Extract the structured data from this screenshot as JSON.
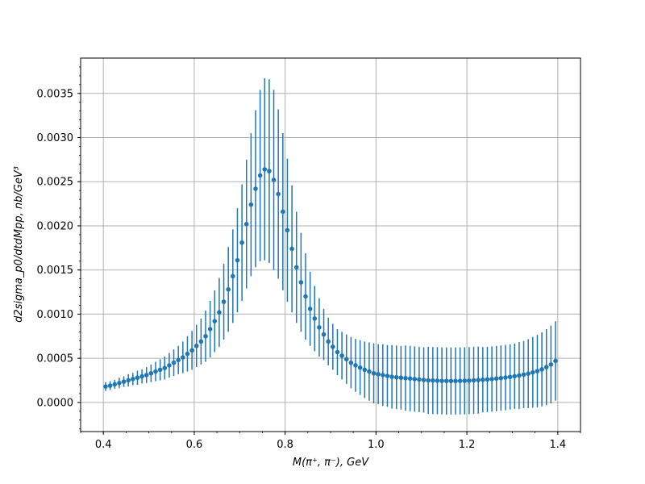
{
  "chart_data": {
    "type": "scatter",
    "title": "",
    "xlabel": "M(π⁺, π⁻), GeV",
    "ylabel": "d2sigma_p0/dtdMpp, nb/GeV³",
    "xlim": [
      0.35,
      1.45
    ],
    "ylim": [
      -0.00033,
      0.0039
    ],
    "xticks": [
      "0.4",
      "0.6",
      "0.8",
      "1.0",
      "1.2",
      "1.4"
    ],
    "yticks": [
      "0.0000",
      "0.0005",
      "0.0010",
      "0.0015",
      "0.0020",
      "0.0025",
      "0.0030",
      "0.0035"
    ],
    "grid": true,
    "marker_color": "#1f77b4",
    "series": [
      {
        "x": [
          0.405,
          0.415,
          0.425,
          0.435,
          0.445,
          0.455,
          0.465,
          0.475,
          0.485,
          0.495,
          0.505,
          0.515,
          0.525,
          0.535,
          0.545,
          0.555,
          0.565,
          0.575,
          0.585,
          0.595,
          0.605,
          0.615,
          0.625,
          0.635,
          0.645,
          0.655,
          0.665,
          0.675,
          0.685,
          0.695,
          0.705,
          0.715,
          0.725,
          0.735,
          0.745,
          0.755,
          0.765,
          0.775,
          0.785,
          0.795,
          0.805,
          0.815,
          0.825,
          0.835,
          0.845,
          0.855,
          0.865,
          0.875,
          0.885,
          0.895,
          0.905,
          0.915,
          0.925,
          0.935,
          0.945,
          0.955,
          0.965,
          0.975,
          0.985,
          0.995,
          1.005,
          1.015,
          1.025,
          1.035,
          1.045,
          1.055,
          1.065,
          1.075,
          1.085,
          1.095,
          1.105,
          1.115,
          1.125,
          1.135,
          1.145,
          1.155,
          1.165,
          1.175,
          1.185,
          1.195,
          1.205,
          1.215,
          1.225,
          1.235,
          1.245,
          1.255,
          1.265,
          1.275,
          1.285,
          1.295,
          1.305,
          1.315,
          1.325,
          1.335,
          1.345,
          1.355,
          1.365,
          1.375,
          1.385,
          1.395
        ],
        "y": [
          0.00018,
          0.00019,
          0.000205,
          0.00022,
          0.000235,
          0.00025,
          0.000265,
          0.00028,
          0.000295,
          0.00031,
          0.00033,
          0.00035,
          0.00037,
          0.00039,
          0.00042,
          0.00045,
          0.00048,
          0.00051,
          0.00055,
          0.00059,
          0.00064,
          0.00069,
          0.00075,
          0.00083,
          0.00092,
          0.00102,
          0.00114,
          0.00128,
          0.00143,
          0.00161,
          0.00181,
          0.00202,
          0.00224,
          0.00242,
          0.00257,
          0.00264,
          0.00262,
          0.00252,
          0.00236,
          0.00216,
          0.00195,
          0.00174,
          0.00153,
          0.00136,
          0.0012,
          0.00106,
          0.00095,
          0.00085,
          0.00077,
          0.00069,
          0.00063,
          0.00057,
          0.00053,
          0.00049,
          0.00045,
          0.00042,
          0.000395,
          0.00037,
          0.00035,
          0.00033,
          0.00032,
          0.00031,
          0.0003,
          0.00029,
          0.000285,
          0.00028,
          0.000275,
          0.00027,
          0.000265,
          0.00026,
          0.000255,
          0.00025,
          0.000248,
          0.000246,
          0.000244,
          0.000243,
          0.000243,
          0.000243,
          0.000244,
          0.000245,
          0.000247,
          0.00025,
          0.000253,
          0.000257,
          0.00026,
          0.000265,
          0.00027,
          0.000276,
          0.000282,
          0.000289,
          0.000297,
          0.000305,
          0.000315,
          0.000326,
          0.00034,
          0.000355,
          0.000375,
          0.0004,
          0.00043,
          0.00047
        ],
        "err": [
          5e-05,
          5e-05,
          5e-05,
          6e-05,
          6e-05,
          7e-05,
          7e-05,
          8e-05,
          8e-05,
          9e-05,
          0.0001,
          0.00011,
          0.00012,
          0.00013,
          0.00014,
          0.00015,
          0.00016,
          0.00018,
          0.0002,
          0.00022,
          0.00024,
          0.00026,
          0.00029,
          0.00032,
          0.00035,
          0.00039,
          0.00043,
          0.00048,
          0.00053,
          0.00059,
          0.00066,
          0.00073,
          0.00081,
          0.00089,
          0.00097,
          0.00103,
          0.00104,
          0.00102,
          0.00096,
          0.00089,
          0.00081,
          0.00072,
          0.00063,
          0.00056,
          0.00049,
          0.00042,
          0.00037,
          0.00033,
          0.00029,
          0.00027,
          0.00026,
          0.00026,
          0.00027,
          0.00028,
          0.00029,
          0.0003,
          0.00031,
          0.00032,
          0.00033,
          0.00034,
          0.00034,
          0.00035,
          0.00035,
          0.00036,
          0.00036,
          0.00036,
          0.00037,
          0.00037,
          0.00037,
          0.00037,
          0.00037,
          0.00038,
          0.00038,
          0.00038,
          0.00038,
          0.00038,
          0.00038,
          0.00038,
          0.00038,
          0.00038,
          0.00038,
          0.00038,
          0.00038,
          0.00037,
          0.00037,
          0.00037,
          0.00037,
          0.00037,
          0.00037,
          0.00037,
          0.00037,
          0.00038,
          0.00038,
          0.00039,
          0.0004,
          0.00041,
          0.00042,
          0.00043,
          0.00044,
          0.00045
        ]
      }
    ]
  }
}
